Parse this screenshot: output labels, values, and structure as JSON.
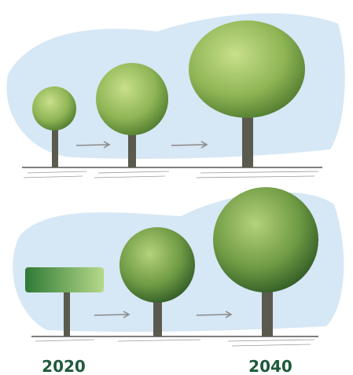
{
  "labels": [
    "2020",
    "2040"
  ]
}
